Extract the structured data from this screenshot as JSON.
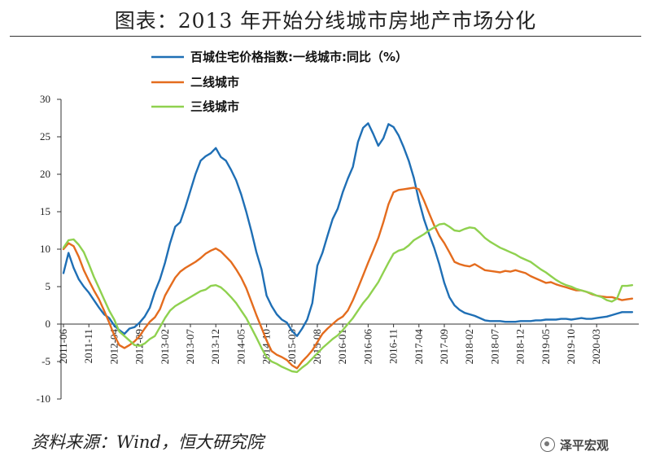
{
  "title": "图表：2013 年开始分线城市房地产市场分化",
  "source": "资料来源：Wind，恒大研究院",
  "watermark": "泽平宏观",
  "chart_data": {
    "type": "line",
    "title": "图表：2013 年开始分线城市房地产市场分化",
    "xlabel": "",
    "ylabel": "",
    "ylim": [
      -10,
      30
    ],
    "y_ticks": [
      -10,
      -5,
      0,
      5,
      10,
      15,
      20,
      25,
      30
    ],
    "grid": false,
    "legend": "top-left",
    "x_ticks": [
      "2011-06",
      "2011-11",
      "2012-04",
      "2012-09",
      "2013-02",
      "2013-07",
      "2013-12",
      "2014-05",
      "2014-10",
      "2015-03",
      "2015-08",
      "2016-01",
      "2016-06",
      "2016-11",
      "2017-04",
      "2017-09",
      "2018-02",
      "2018-07",
      "2018-12",
      "2019-05",
      "2019-10",
      "2020-03"
    ],
    "x": [
      "2011-06",
      "2011-07",
      "2011-08",
      "2011-09",
      "2011-10",
      "2011-11",
      "2011-12",
      "2012-01",
      "2012-02",
      "2012-03",
      "2012-04",
      "2012-05",
      "2012-06",
      "2012-07",
      "2012-08",
      "2012-09",
      "2012-10",
      "2012-11",
      "2012-12",
      "2013-01",
      "2013-02",
      "2013-03",
      "2013-04",
      "2013-05",
      "2013-06",
      "2013-07",
      "2013-08",
      "2013-09",
      "2013-10",
      "2013-11",
      "2013-12",
      "2014-01",
      "2014-02",
      "2014-03",
      "2014-04",
      "2014-05",
      "2014-06",
      "2014-07",
      "2014-08",
      "2014-09",
      "2014-10",
      "2014-11",
      "2014-12",
      "2015-01",
      "2015-02",
      "2015-03",
      "2015-04",
      "2015-05",
      "2015-06",
      "2015-07",
      "2015-08",
      "2015-09",
      "2015-10",
      "2015-11",
      "2015-12",
      "2016-01",
      "2016-02",
      "2016-03",
      "2016-04",
      "2016-05",
      "2016-06",
      "2016-07",
      "2016-08",
      "2016-09",
      "2016-10",
      "2016-11",
      "2016-12",
      "2017-01",
      "2017-02",
      "2017-03",
      "2017-04",
      "2017-05",
      "2017-06",
      "2017-07",
      "2017-08",
      "2017-09",
      "2017-10",
      "2017-11",
      "2017-12",
      "2018-01",
      "2018-02",
      "2018-03",
      "2018-04",
      "2018-05",
      "2018-06",
      "2018-07",
      "2018-08",
      "2018-09",
      "2018-10",
      "2018-11",
      "2018-12",
      "2019-01",
      "2019-02",
      "2019-03",
      "2019-04",
      "2019-05",
      "2019-06",
      "2019-07",
      "2019-08",
      "2019-09",
      "2019-10",
      "2019-11",
      "2019-12",
      "2020-01",
      "2020-02",
      "2020-03",
      "2020-04",
      "2020-05",
      "2020-06",
      "2020-07",
      "2020-08",
      "2020-09",
      "2020-10"
    ],
    "series": [
      {
        "name": "百城住宅价格指数:一线城市:同比（%）",
        "color": "#1f6fb5",
        "values": [
          6.8,
          9.5,
          7.5,
          6.0,
          5.0,
          4.2,
          3.2,
          2.2,
          1.3,
          0.8,
          -0.2,
          -0.8,
          -1.3,
          -0.6,
          -0.4,
          0.2,
          1.0,
          2.2,
          4.3,
          6.0,
          8.2,
          10.8,
          13.0,
          13.6,
          15.6,
          17.8,
          20.0,
          21.8,
          22.4,
          22.8,
          23.5,
          22.3,
          21.8,
          20.6,
          19.2,
          17.3,
          15.0,
          12.4,
          9.6,
          7.3,
          3.8,
          2.4,
          1.3,
          0.6,
          0.2,
          -0.9,
          -1.6,
          -0.6,
          0.6,
          2.8,
          7.8,
          9.5,
          11.8,
          14.0,
          15.4,
          17.6,
          19.4,
          21.0,
          24.3,
          26.2,
          26.8,
          25.4,
          23.8,
          24.8,
          26.7,
          26.3,
          25.2,
          23.6,
          21.8,
          19.5,
          16.5,
          14.0,
          12.0,
          10.2,
          8.0,
          5.5,
          3.6,
          2.5,
          1.9,
          1.5,
          1.3,
          1.1,
          0.8,
          0.5,
          0.4,
          0.4,
          0.4,
          0.3,
          0.3,
          0.3,
          0.4,
          0.4,
          0.4,
          0.5,
          0.5,
          0.6,
          0.6,
          0.6,
          0.7,
          0.7,
          0.6,
          0.7,
          0.8,
          0.7,
          0.7,
          0.8,
          0.9,
          1.0,
          1.2,
          1.4,
          1.6,
          1.6,
          1.6
        ]
      },
      {
        "name": "二线城市",
        "color": "#e46c1e",
        "values": [
          10.0,
          10.8,
          10.4,
          9.0,
          7.2,
          5.8,
          4.5,
          3.3,
          1.8,
          0.2,
          -1.5,
          -2.8,
          -3.2,
          -2.8,
          -2.3,
          -1.6,
          -0.6,
          0.3,
          0.9,
          2.0,
          3.8,
          5.0,
          6.2,
          7.0,
          7.5,
          7.9,
          8.3,
          8.8,
          9.4,
          9.8,
          10.1,
          9.7,
          9.0,
          8.3,
          7.3,
          6.2,
          4.8,
          3.0,
          1.2,
          -0.5,
          -2.2,
          -3.6,
          -4.1,
          -4.4,
          -4.8,
          -5.5,
          -5.9,
          -5.0,
          -4.3,
          -3.5,
          -2.4,
          -1.3,
          -0.6,
          0.0,
          0.6,
          1.0,
          1.8,
          3.2,
          4.8,
          6.5,
          8.2,
          9.8,
          11.5,
          13.6,
          16.0,
          17.6,
          17.9,
          18.0,
          18.1,
          18.2,
          18.0,
          16.5,
          14.8,
          13.2,
          11.8,
          10.8,
          9.6,
          8.3,
          8.0,
          7.8,
          7.7,
          8.0,
          7.6,
          7.2,
          7.1,
          7.0,
          6.9,
          7.1,
          7.0,
          7.2,
          7.0,
          6.8,
          6.4,
          6.1,
          5.8,
          5.5,
          5.6,
          5.3,
          5.1,
          4.9,
          4.7,
          4.5,
          4.5,
          4.3,
          4.0,
          3.8,
          3.7,
          3.6,
          3.6,
          3.4,
          3.2,
          3.3,
          3.4
        ]
      },
      {
        "name": "三线城市",
        "color": "#8fd14f",
        "values": [
          10.2,
          11.2,
          11.3,
          10.6,
          9.6,
          8.0,
          6.3,
          4.8,
          3.3,
          1.8,
          0.6,
          -1.0,
          -1.6,
          -2.2,
          -2.8,
          -2.9,
          -2.6,
          -2.0,
          -1.6,
          -0.4,
          0.8,
          1.8,
          2.4,
          2.8,
          3.2,
          3.6,
          4.0,
          4.4,
          4.6,
          5.1,
          5.2,
          4.9,
          4.3,
          3.6,
          2.8,
          1.8,
          0.8,
          -0.5,
          -1.8,
          -3.2,
          -4.4,
          -5.0,
          -5.3,
          -5.7,
          -6.0,
          -6.3,
          -6.4,
          -5.8,
          -5.3,
          -4.6,
          -3.9,
          -3.2,
          -2.6,
          -2.0,
          -1.5,
          -0.8,
          0.0,
          0.8,
          1.8,
          2.8,
          3.6,
          4.6,
          5.6,
          6.9,
          8.2,
          9.4,
          9.8,
          10.0,
          10.5,
          11.2,
          11.6,
          12.0,
          12.5,
          12.9,
          13.3,
          13.4,
          13.0,
          12.5,
          12.4,
          12.7,
          12.9,
          12.8,
          12.2,
          11.5,
          11.0,
          10.6,
          10.2,
          9.9,
          9.6,
          9.3,
          8.9,
          8.6,
          8.3,
          7.8,
          7.3,
          6.9,
          6.4,
          5.9,
          5.5,
          5.2,
          5.0,
          4.7,
          4.5,
          4.3,
          4.1,
          3.8,
          3.6,
          3.2,
          3.0,
          3.4,
          5.1,
          5.1,
          5.2
        ]
      }
    ]
  }
}
